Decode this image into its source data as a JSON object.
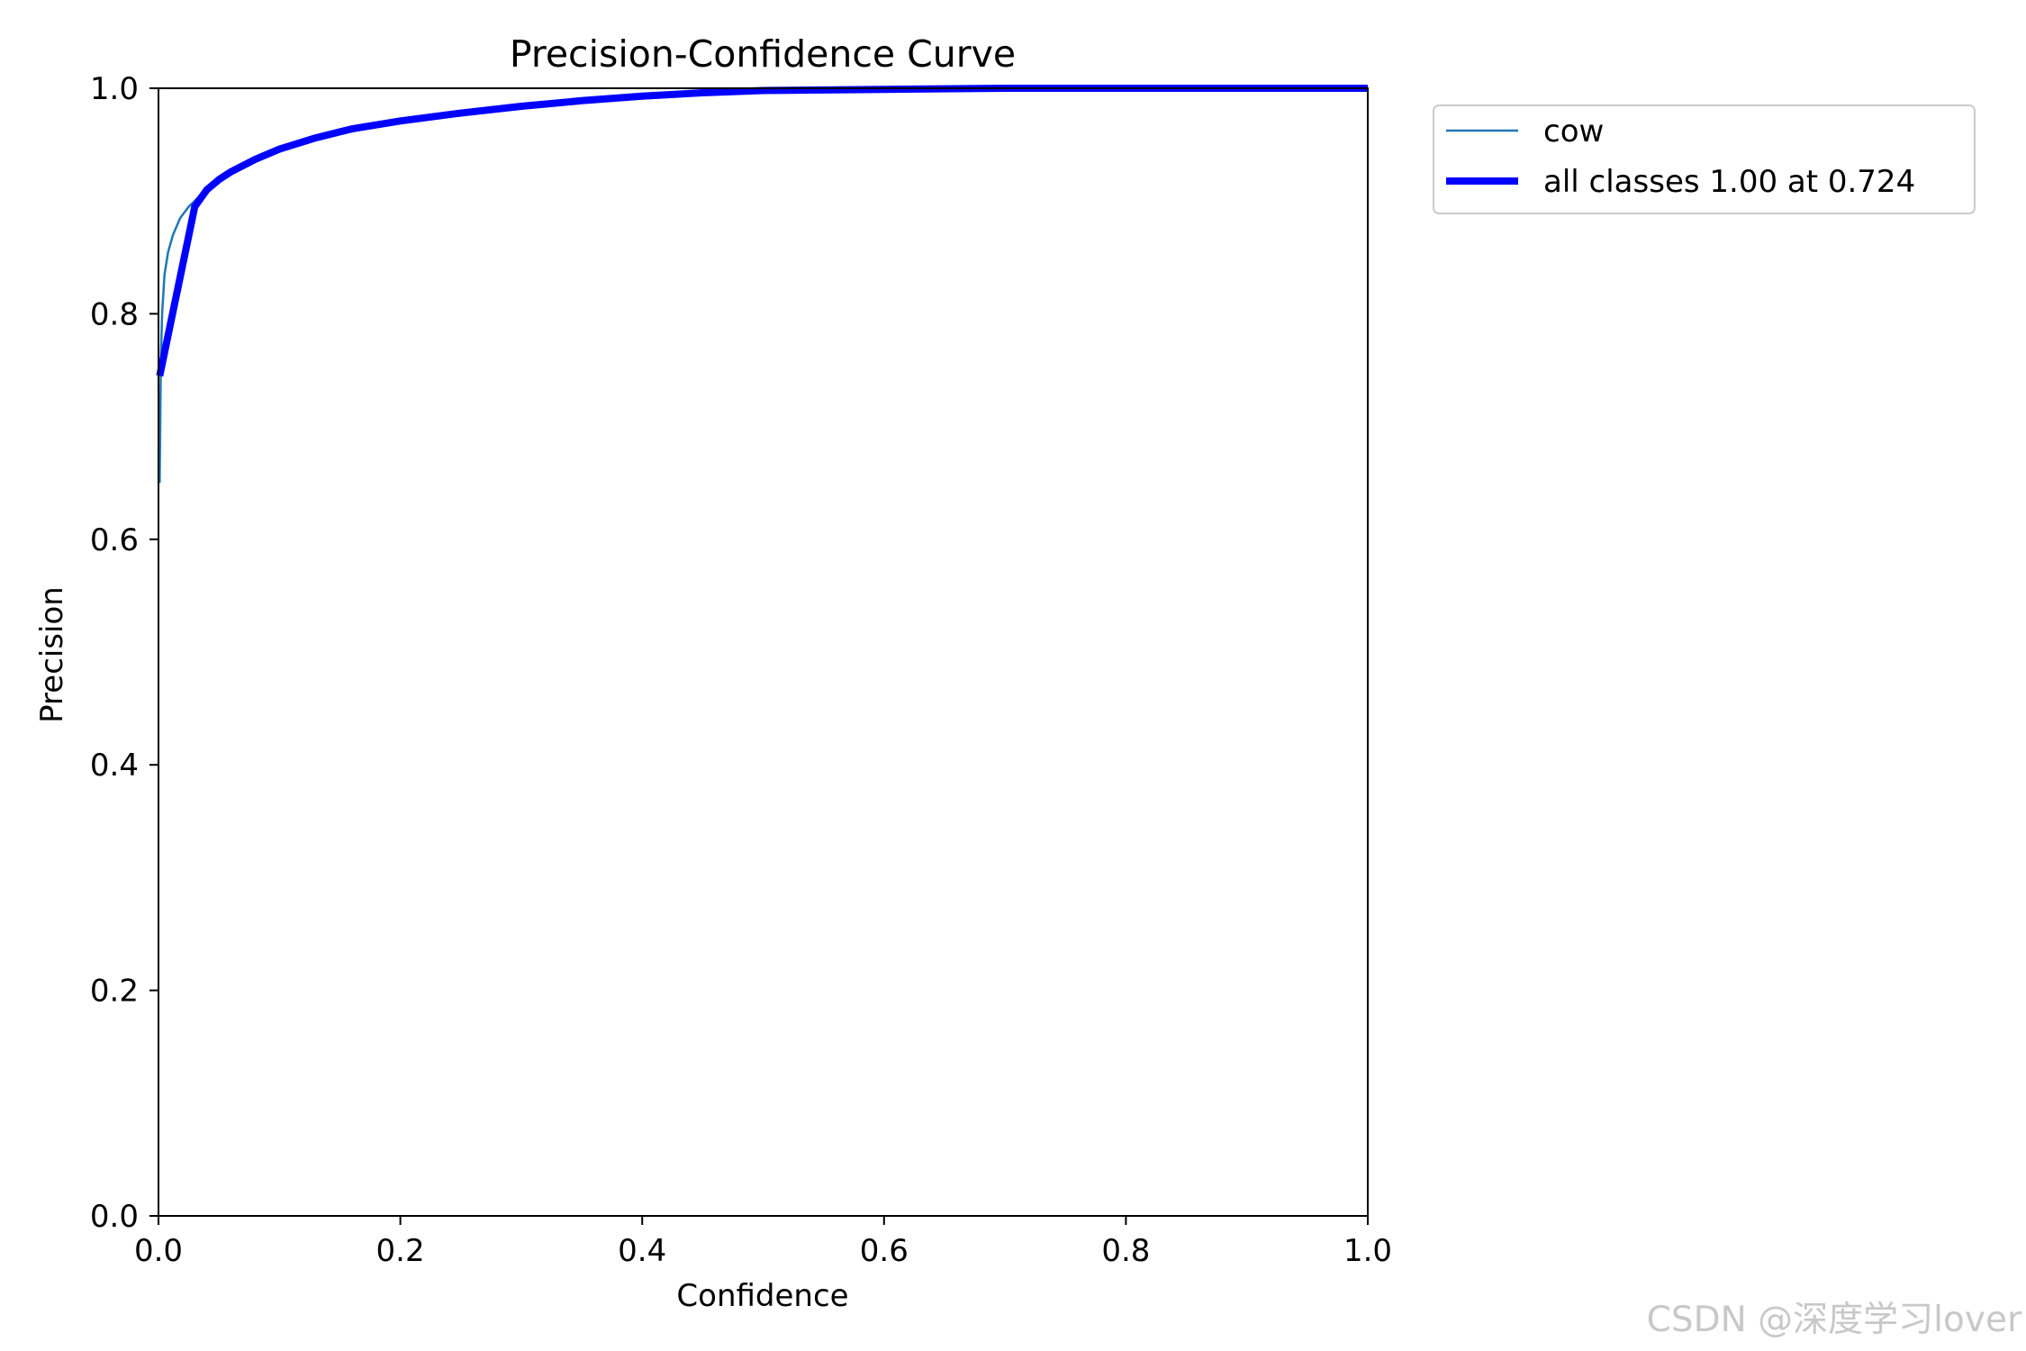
{
  "chart_data": {
    "type": "line",
    "title": "Precision-Confidence Curve",
    "xlabel": "Confidence",
    "ylabel": "Precision",
    "xlim": [
      0.0,
      1.0
    ],
    "ylim": [
      0.0,
      1.0
    ],
    "xticks": [
      0.0,
      0.2,
      0.4,
      0.6,
      0.8,
      1.0
    ],
    "yticks": [
      0.0,
      0.2,
      0.4,
      0.6,
      0.8,
      1.0
    ],
    "xtick_labels": [
      "0.0",
      "0.2",
      "0.4",
      "0.6",
      "0.8",
      "1.0"
    ],
    "ytick_labels": [
      "0.0",
      "0.2",
      "0.4",
      "0.6",
      "0.8",
      "1.0"
    ],
    "grid": false,
    "legend_position": "outside-top-right",
    "series": [
      {
        "name": "cow",
        "color": "#1f77b4",
        "style": "thin",
        "x": [
          0.001,
          0.002,
          0.003,
          0.005,
          0.008,
          0.012,
          0.018,
          0.025,
          0.03,
          0.04,
          0.05,
          0.06,
          0.08,
          0.1,
          0.13,
          0.16,
          0.2,
          0.25,
          0.3,
          0.35,
          0.4,
          0.45,
          0.5,
          0.6,
          0.7,
          0.8,
          0.9,
          1.0
        ],
        "y": [
          0.65,
          0.76,
          0.8,
          0.835,
          0.855,
          0.87,
          0.885,
          0.895,
          0.9,
          0.912,
          0.92,
          0.927,
          0.938,
          0.947,
          0.957,
          0.965,
          0.972,
          0.979,
          0.985,
          0.989,
          0.993,
          0.996,
          0.998,
          0.999,
          1.0,
          1.0,
          1.0,
          1.0
        ]
      },
      {
        "name": "all classes 1.00 at 0.724",
        "color": "#0000ff",
        "style": "thick",
        "x": [
          0.001,
          0.03,
          0.04,
          0.05,
          0.06,
          0.08,
          0.1,
          0.13,
          0.16,
          0.2,
          0.25,
          0.3,
          0.35,
          0.4,
          0.45,
          0.5,
          0.6,
          0.7,
          0.8,
          0.9,
          1.0
        ],
        "y": [
          0.745,
          0.895,
          0.91,
          0.919,
          0.926,
          0.937,
          0.946,
          0.956,
          0.964,
          0.971,
          0.978,
          0.984,
          0.989,
          0.993,
          0.996,
          0.998,
          0.999,
          1.0,
          1.0,
          1.0,
          1.0
        ]
      }
    ]
  },
  "watermark": "CSDN @深度学习lover"
}
